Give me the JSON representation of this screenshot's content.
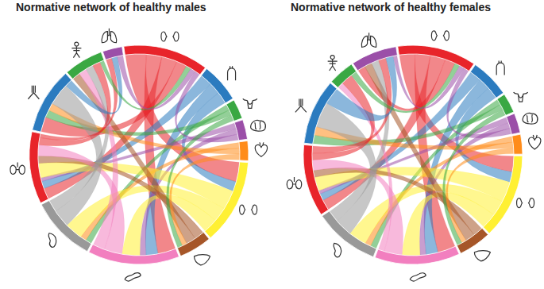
{
  "chart_data": [
    {
      "type": "chord",
      "title": "Normative network of healthy males",
      "values": [
        13,
        6,
        3,
        3,
        3,
        13,
        5,
        14,
        10,
        11,
        10,
        6,
        3
      ],
      "colors": [
        "#e8242a",
        "#2b7bbf",
        "#3aa843",
        "#9b4fa8",
        "#ff8c1a",
        "#fff033",
        "#a65628",
        "#f27fbf",
        "#999999",
        "#e8242a",
        "#2b7bbf",
        "#3aa843",
        "#9b4fa8"
      ],
      "links": [
        {
          "source": 0,
          "target": 5,
          "value": 4
        },
        {
          "source": 0,
          "target": 7,
          "value": 3
        },
        {
          "source": 0,
          "target": 9,
          "value": 3
        },
        {
          "source": 0,
          "target": 10,
          "value": 2
        },
        {
          "source": 1,
          "target": 9,
          "value": 2
        },
        {
          "source": 1,
          "target": 7,
          "value": 2
        },
        {
          "source": 1,
          "target": 5,
          "value": 2
        },
        {
          "source": 2,
          "target": 8,
          "value": 1
        },
        {
          "source": 2,
          "target": 10,
          "value": 1
        },
        {
          "source": 3,
          "target": 9,
          "value": 1
        },
        {
          "source": 3,
          "target": 7,
          "value": 1
        },
        {
          "source": 4,
          "target": 8,
          "value": 1
        },
        {
          "source": 4,
          "target": 10,
          "value": 1
        },
        {
          "source": 5,
          "target": 9,
          "value": 4
        },
        {
          "source": 5,
          "target": 8,
          "value": 3
        },
        {
          "source": 5,
          "target": 7,
          "value": 3
        },
        {
          "source": 6,
          "target": 9,
          "value": 2
        },
        {
          "source": 6,
          "target": 11,
          "value": 2
        },
        {
          "source": 7,
          "target": 9,
          "value": 3
        },
        {
          "source": 7,
          "target": 11,
          "value": 2
        },
        {
          "source": 8,
          "target": 10,
          "value": 3
        },
        {
          "source": 8,
          "target": 11,
          "value": 2
        },
        {
          "source": 9,
          "target": 11,
          "value": 2
        },
        {
          "source": 9,
          "target": 12,
          "value": 1
        },
        {
          "source": 10,
          "target": 12,
          "value": 1
        },
        {
          "source": 11,
          "target": 0,
          "value": 1
        },
        {
          "source": 12,
          "target": 0,
          "value": 1
        },
        {
          "source": 3,
          "target": 0,
          "value": 1
        },
        {
          "source": 4,
          "target": 6,
          "value": 1
        },
        {
          "source": 2,
          "target": 6,
          "value": 1
        }
      ]
    },
    {
      "type": "chord",
      "title": "Normative network of healthy females",
      "values": [
        12,
        6,
        3,
        3,
        3,
        13,
        5,
        13,
        10,
        11,
        10,
        4,
        7
      ],
      "colors": [
        "#e8242a",
        "#2b7bbf",
        "#3aa843",
        "#9b4fa8",
        "#ff8c1a",
        "#fff033",
        "#a65628",
        "#f27fbf",
        "#999999",
        "#e8242a",
        "#2b7bbf",
        "#3aa843",
        "#9b4fa8"
      ],
      "links": [
        {
          "source": 0,
          "target": 5,
          "value": 3
        },
        {
          "source": 0,
          "target": 7,
          "value": 3
        },
        {
          "source": 0,
          "target": 9,
          "value": 3
        },
        {
          "source": 0,
          "target": 12,
          "value": 2
        },
        {
          "source": 1,
          "target": 9,
          "value": 2
        },
        {
          "source": 1,
          "target": 7,
          "value": 2
        },
        {
          "source": 1,
          "target": 5,
          "value": 2
        },
        {
          "source": 2,
          "target": 8,
          "value": 1
        },
        {
          "source": 2,
          "target": 10,
          "value": 1
        },
        {
          "source": 3,
          "target": 9,
          "value": 1
        },
        {
          "source": 3,
          "target": 7,
          "value": 1
        },
        {
          "source": 4,
          "target": 8,
          "value": 1
        },
        {
          "source": 4,
          "target": 10,
          "value": 1
        },
        {
          "source": 5,
          "target": 9,
          "value": 4
        },
        {
          "source": 5,
          "target": 8,
          "value": 3
        },
        {
          "source": 5,
          "target": 7,
          "value": 3
        },
        {
          "source": 6,
          "target": 9,
          "value": 2
        },
        {
          "source": 6,
          "target": 12,
          "value": 2
        },
        {
          "source": 7,
          "target": 9,
          "value": 3
        },
        {
          "source": 7,
          "target": 11,
          "value": 1
        },
        {
          "source": 8,
          "target": 10,
          "value": 3
        },
        {
          "source": 8,
          "target": 12,
          "value": 2
        },
        {
          "source": 9,
          "target": 11,
          "value": 2
        },
        {
          "source": 9,
          "target": 12,
          "value": 2
        },
        {
          "source": 10,
          "target": 12,
          "value": 2
        },
        {
          "source": 11,
          "target": 0,
          "value": 1
        },
        {
          "source": 12,
          "target": 0,
          "value": 1
        },
        {
          "source": 3,
          "target": 0,
          "value": 1
        },
        {
          "source": 4,
          "target": 6,
          "value": 1
        },
        {
          "source": 2,
          "target": 6,
          "value": 1
        }
      ]
    }
  ]
}
